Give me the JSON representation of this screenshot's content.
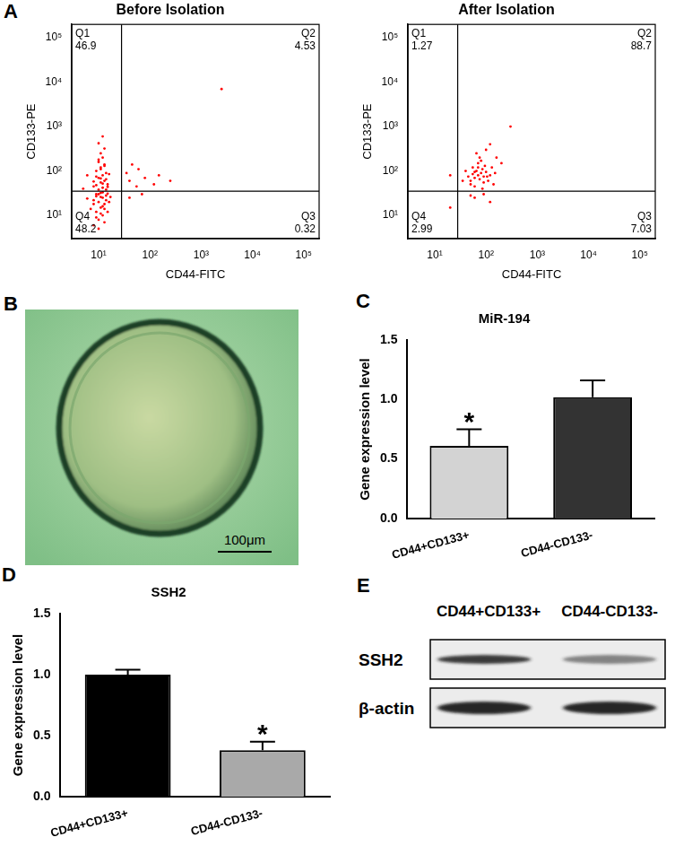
{
  "chart_data": [
    {
      "type": "scatter",
      "panel_label": "A",
      "title": "Before Isolation",
      "x_label": "CD44-FITC",
      "y_label": "CD133-PE",
      "log": true,
      "grid": false,
      "color": "#ff0000",
      "marker": "dot",
      "xlim": [
        3,
        200000
      ],
      "ylim": [
        3,
        200000
      ],
      "xticks": [
        {
          "value": 10,
          "label": "10¹"
        },
        {
          "value": 100,
          "label": "10²"
        },
        {
          "value": 1000,
          "label": "10³"
        },
        {
          "value": 10000,
          "label": "10⁴"
        },
        {
          "value": 100000,
          "label": "10⁵"
        }
      ],
      "yticks": [
        {
          "value": 10,
          "label": "10¹"
        },
        {
          "value": 100,
          "label": "10²"
        },
        {
          "value": 1000,
          "label": "10³"
        },
        {
          "value": 10000,
          "label": "10⁴"
        },
        {
          "value": 100000,
          "label": "10⁵"
        }
      ],
      "gate_x": 28,
      "gate_y": 35,
      "quadrants": [
        {
          "name": "Q1",
          "value": 46.9
        },
        {
          "name": "Q2",
          "value": 4.53
        },
        {
          "name": "Q3",
          "value": 0.32
        },
        {
          "name": "Q4",
          "value": 48.2
        }
      ],
      "x": [
        8,
        10,
        12,
        9,
        11,
        13,
        10,
        8,
        12,
        14,
        9,
        11,
        7,
        15,
        10,
        13,
        16,
        11,
        9,
        12,
        14,
        10,
        8,
        17,
        12,
        6,
        11,
        13,
        9,
        15,
        10,
        12,
        9,
        11,
        13,
        10,
        12,
        14,
        9,
        11,
        13,
        10,
        12,
        11,
        13,
        10,
        12,
        8,
        15,
        14,
        9,
        16,
        11,
        13,
        10,
        12,
        14,
        8,
        11,
        15,
        40,
        55,
        80,
        120,
        60,
        35,
        150,
        45,
        250,
        40,
        70,
        2500,
        5,
        6
      ],
      "values": [
        6,
        8,
        10,
        12,
        15,
        18,
        20,
        22,
        25,
        28,
        30,
        32,
        14,
        12,
        5,
        7,
        20,
        26,
        9,
        16,
        22,
        30,
        18,
        26,
        33,
        24,
        11,
        14,
        27,
        31,
        38,
        42,
        48,
        55,
        60,
        70,
        80,
        90,
        100,
        120,
        140,
        160,
        200,
        250,
        320,
        420,
        600,
        45,
        50,
        65,
        75,
        85,
        110,
        130,
        180,
        52,
        38,
        58,
        68,
        44,
        60,
        45,
        70,
        50,
        110,
        90,
        80,
        140,
        60,
        25,
        30,
        7000,
        40,
        80
      ]
    },
    {
      "type": "scatter",
      "title": "After Isolation",
      "x_label": "CD44-FITC",
      "y_label": "CD133-PE",
      "log": true,
      "grid": false,
      "color": "#ff0000",
      "marker": "dot",
      "xlim": [
        3,
        200000
      ],
      "ylim": [
        3,
        200000
      ],
      "xticks": [
        {
          "value": 10,
          "label": "10¹"
        },
        {
          "value": 100,
          "label": "10²"
        },
        {
          "value": 1000,
          "label": "10³"
        },
        {
          "value": 10000,
          "label": "10⁴"
        },
        {
          "value": 100000,
          "label": "10⁵"
        }
      ],
      "yticks": [
        {
          "value": 10,
          "label": "10¹"
        },
        {
          "value": 100,
          "label": "10²"
        },
        {
          "value": 1000,
          "label": "10³"
        },
        {
          "value": 10000,
          "label": "10⁴"
        },
        {
          "value": 100000,
          "label": "10⁵"
        }
      ],
      "gate_x": 28,
      "gate_y": 35,
      "quadrants": [
        {
          "name": "Q1",
          "value": 1.27
        },
        {
          "name": "Q2",
          "value": 88.7
        },
        {
          "name": "Q3",
          "value": 7.03
        },
        {
          "name": "Q4",
          "value": 2.99
        }
      ],
      "x": [
        50,
        60,
        70,
        80,
        90,
        65,
        55,
        75,
        85,
        100,
        45,
        120,
        95,
        70,
        60,
        110,
        130,
        150,
        40,
        75,
        90,
        55,
        200,
        65,
        100,
        50,
        85,
        140,
        35,
        70,
        80,
        60,
        105,
        160,
        300,
        120,
        60,
        90,
        120,
        50,
        20,
        20
      ],
      "values": [
        60,
        70,
        80,
        90,
        75,
        100,
        85,
        65,
        110,
        95,
        75,
        80,
        130,
        150,
        45,
        60,
        120,
        90,
        100,
        200,
        55,
        120,
        150,
        250,
        300,
        50,
        40,
        50,
        60,
        120,
        170,
        95,
        75,
        200,
        1000,
        400,
        25,
        30,
        20,
        28,
        80,
        15
      ]
    },
    {
      "type": "bar",
      "panel_label": "C",
      "title": "MiR-194",
      "y_label": "Gene expression level",
      "categories": [
        "CD44+CD133+",
        "CD44-CD133-"
      ],
      "values": [
        0.61,
        1.02
      ],
      "errors": [
        0.14,
        0.14
      ],
      "colors": [
        "#d3d3d3",
        "#333333"
      ],
      "grid": false,
      "ylim": [
        0,
        1.5
      ],
      "yticks": [
        {
          "value": 0,
          "label": "0.0"
        },
        {
          "value": 0.5,
          "label": "0.5"
        },
        {
          "value": 1,
          "label": "1.0"
        },
        {
          "value": 1.5,
          "label": "1.5"
        }
      ],
      "annotations": [
        {
          "category": "CD44+CD133+",
          "text": "*"
        }
      ]
    },
    {
      "type": "bar",
      "panel_label": "D",
      "title": "SSH2",
      "y_label": "Gene expression level",
      "categories": [
        "CD44+CD133+",
        "CD44-CD133-"
      ],
      "values": [
        1.0,
        0.38
      ],
      "errors": [
        0.04,
        0.07
      ],
      "colors": [
        "#000000",
        "#a9a9a9"
      ],
      "grid": false,
      "ylim": [
        0,
        1.5
      ],
      "yticks": [
        {
          "value": 0,
          "label": "0.0"
        },
        {
          "value": 0.5,
          "label": "0.5"
        },
        {
          "value": 1,
          "label": "1.0"
        },
        {
          "value": 1.5,
          "label": "1.5"
        }
      ],
      "annotations": [
        {
          "category": "CD44-CD133-",
          "text": "*"
        }
      ]
    }
  ],
  "image": {
    "panel_label": "B",
    "scale_bar": "100μm"
  },
  "blot": {
    "panel_label": "E",
    "lanes": [
      "CD44+CD133+",
      "CD44-CD133-"
    ],
    "rows": [
      "SSH2",
      "β-actin"
    ]
  }
}
